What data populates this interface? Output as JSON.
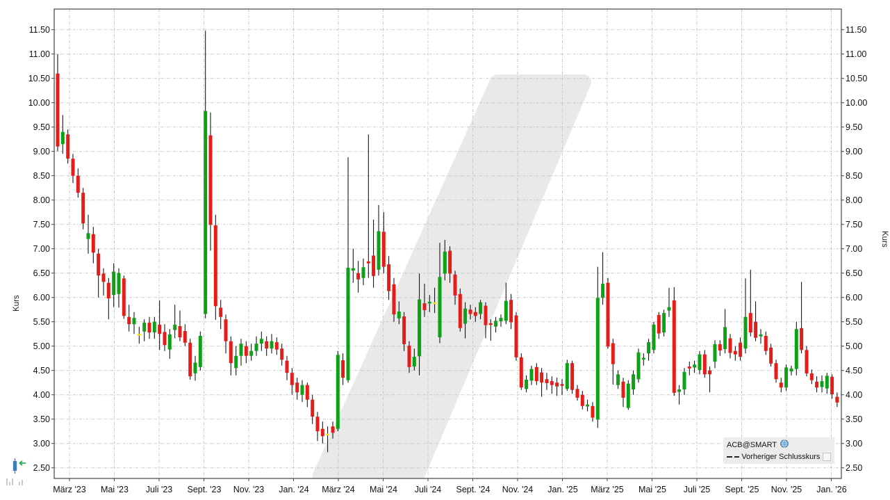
{
  "axes": {
    "y_title_left": "Kurs",
    "y_title_right": "Kurs",
    "y_ticks": [
      "11.50",
      "11.00",
      "10.50",
      "10.00",
      "9.50",
      "9.00",
      "8.50",
      "8.00",
      "7.50",
      "7.00",
      "6.50",
      "6.00",
      "5.50",
      "5.00",
      "4.50",
      "4.00",
      "3.50",
      "3.00",
      "2.50"
    ],
    "x_ticks": [
      "März '23",
      "Mai '23",
      "Juli '23",
      "Sept. '23",
      "Nov. '23",
      "Jan. '24",
      "März '24",
      "Mai '24",
      "Juli '24",
      "Sept. '24",
      "Nov. '24",
      "Jan. '25",
      "März '25",
      "Mai '25",
      "Juli '25",
      "Sept. '25",
      "Nov. '25",
      "Jan. '26"
    ]
  },
  "legend": {
    "series_name": "ACB@SMART",
    "series_icon": "globe-icon",
    "line_label": "Vorheriger Schlusskurs",
    "line_style": "dashed"
  },
  "colors": {
    "up": "#0ea117",
    "down": "#e51d18",
    "doji": "#ffdf00",
    "wick": "#000000",
    "grid": "#c8c8c8",
    "frame": "#444444",
    "watermark": "#e9e9e9",
    "legend_bg": "#ececec",
    "tool_blue": "#3b7dc4",
    "tool_green": "#27ae60",
    "tool_gray": "#cccccc"
  },
  "chart_data": {
    "type": "candlestick",
    "title": "",
    "xlabel": "",
    "ylabel": "Kurs",
    "ylim": [
      2.5,
      11.5
    ],
    "grid": true,
    "legend_position": "bottom-right",
    "x_range": [
      "März '23",
      "Jan. '26"
    ],
    "interval": "weekly",
    "ohlc": [
      [
        10.6,
        11.0,
        9.0,
        9.1
      ],
      [
        9.15,
        9.75,
        8.95,
        9.4
      ],
      [
        9.35,
        9.45,
        8.75,
        8.85
      ],
      [
        8.85,
        8.95,
        8.35,
        8.5
      ],
      [
        8.5,
        8.65,
        8.05,
        8.15
      ],
      [
        8.15,
        8.25,
        7.4,
        7.52
      ],
      [
        7.2,
        7.7,
        6.9,
        7.32
      ],
      [
        7.3,
        7.45,
        6.7,
        6.92
      ],
      [
        6.9,
        7.0,
        6.0,
        6.45
      ],
      [
        6.49,
        6.6,
        6.04,
        6.32
      ],
      [
        6.3,
        6.4,
        5.55,
        5.98
      ],
      [
        6.05,
        6.7,
        5.8,
        6.53
      ],
      [
        6.07,
        6.6,
        5.79,
        6.5
      ],
      [
        6.39,
        6.45,
        5.56,
        5.62
      ],
      [
        5.6,
        5.85,
        5.3,
        5.45
      ],
      [
        5.45,
        5.7,
        5.25,
        5.58
      ],
      [
        5.25,
        5.4,
        5.05,
        5.25
      ],
      [
        5.3,
        5.55,
        5.1,
        5.48
      ],
      [
        5.48,
        5.6,
        5.15,
        5.28
      ],
      [
        5.28,
        5.6,
        5.15,
        5.5
      ],
      [
        5.44,
        5.94,
        4.92,
        5.25
      ],
      [
        5.29,
        5.45,
        4.9,
        5.02
      ],
      [
        4.93,
        5.35,
        4.74,
        5.24
      ],
      [
        5.33,
        5.85,
        5.16,
        5.44
      ],
      [
        5.41,
        5.73,
        5.1,
        5.18
      ],
      [
        5.31,
        5.45,
        5.0,
        5.07
      ],
      [
        5.07,
        5.15,
        4.31,
        4.38
      ],
      [
        4.44,
        4.8,
        4.29,
        4.66
      ],
      [
        4.57,
        5.3,
        4.5,
        5.21
      ],
      [
        5.66,
        11.48,
        5.57,
        9.83
      ],
      [
        9.33,
        9.8,
        6.96,
        7.49
      ],
      [
        7.48,
        7.7,
        5.54,
        5.82
      ],
      [
        5.79,
        5.95,
        5.35,
        5.6
      ],
      [
        5.55,
        5.65,
        4.85,
        5.1
      ],
      [
        5.1,
        5.2,
        4.4,
        4.65
      ],
      [
        4.55,
        5.0,
        4.4,
        4.8
      ],
      [
        4.8,
        5.15,
        4.6,
        5.05
      ],
      [
        5.0,
        5.1,
        4.65,
        4.8
      ],
      [
        4.8,
        5.05,
        4.7,
        4.9
      ],
      [
        4.9,
        5.2,
        4.8,
        5.05
      ],
      [
        5.05,
        5.3,
        4.9,
        5.15
      ],
      [
        5.1,
        5.2,
        4.8,
        4.95
      ],
      [
        4.95,
        5.25,
        4.85,
        5.1
      ],
      [
        5.08,
        5.18,
        4.82,
        4.93
      ],
      [
        4.95,
        5.05,
        4.6,
        4.72
      ],
      [
        4.7,
        4.8,
        4.3,
        4.45
      ],
      [
        4.45,
        4.55,
        4.0,
        4.2
      ],
      [
        4.25,
        4.35,
        3.9,
        4.05
      ],
      [
        4.0,
        4.3,
        3.85,
        4.2
      ],
      [
        4.2,
        4.25,
        3.75,
        3.9
      ],
      [
        3.9,
        4.0,
        3.4,
        3.55
      ],
      [
        3.55,
        3.65,
        3.05,
        3.25
      ],
      [
        3.3,
        3.45,
        3.0,
        3.15
      ],
      [
        3.2,
        3.35,
        2.82,
        3.2
      ],
      [
        3.35,
        3.45,
        3.1,
        3.22
      ],
      [
        3.3,
        4.9,
        3.25,
        4.82
      ],
      [
        4.71,
        4.85,
        4.2,
        4.35
      ],
      [
        4.3,
        8.88,
        4.25,
        6.61
      ],
      [
        6.55,
        7.0,
        6.3,
        6.6
      ],
      [
        6.5,
        6.75,
        6.1,
        6.37
      ],
      [
        6.4,
        6.8,
        6.25,
        6.62
      ],
      [
        6.74,
        9.35,
        6.4,
        6.7
      ],
      [
        6.86,
        7.6,
        6.2,
        6.44
      ],
      [
        6.57,
        7.9,
        6.45,
        7.36
      ],
      [
        7.35,
        7.75,
        6.5,
        6.63
      ],
      [
        6.68,
        6.85,
        5.95,
        6.13
      ],
      [
        6.27,
        6.4,
        5.5,
        5.65
      ],
      [
        5.57,
        5.92,
        5.45,
        5.71
      ],
      [
        5.61,
        5.7,
        4.9,
        5.04
      ],
      [
        5.01,
        5.1,
        4.45,
        4.57
      ],
      [
        4.58,
        4.95,
        4.5,
        4.78
      ],
      [
        4.79,
        6.49,
        4.4,
        5.96
      ],
      [
        5.88,
        6.28,
        5.6,
        5.74
      ],
      [
        5.88,
        6.05,
        5.7,
        5.91
      ],
      [
        5.9,
        6.2,
        5.68,
        5.9
      ],
      [
        5.18,
        7.12,
        5.06,
        6.42
      ],
      [
        6.49,
        7.18,
        6.35,
        6.94
      ],
      [
        6.96,
        7.05,
        6.3,
        6.49
      ],
      [
        6.47,
        6.55,
        5.85,
        6.04
      ],
      [
        6.07,
        6.18,
        5.3,
        5.37
      ],
      [
        5.46,
        5.9,
        5.16,
        5.77
      ],
      [
        5.75,
        5.85,
        5.55,
        5.66
      ],
      [
        5.7,
        5.8,
        5.5,
        5.62
      ],
      [
        5.66,
        5.95,
        5.55,
        5.9
      ],
      [
        5.83,
        5.9,
        5.16,
        5.43
      ],
      [
        5.47,
        5.55,
        5.11,
        5.45
      ],
      [
        5.4,
        5.6,
        5.28,
        5.52
      ],
      [
        5.51,
        5.65,
        5.4,
        5.58
      ],
      [
        5.52,
        6.3,
        5.45,
        5.93
      ],
      [
        5.95,
        6.07,
        5.35,
        5.49
      ],
      [
        5.63,
        5.7,
        4.7,
        4.77
      ],
      [
        4.77,
        4.85,
        4.1,
        4.15
      ],
      [
        4.12,
        4.4,
        4.05,
        4.31
      ],
      [
        4.29,
        4.6,
        4.2,
        4.53
      ],
      [
        4.57,
        4.65,
        4.2,
        4.28
      ],
      [
        4.46,
        4.55,
        3.96,
        4.25
      ],
      [
        4.32,
        4.45,
        4.1,
        4.24
      ],
      [
        4.28,
        4.38,
        4.02,
        4.2
      ],
      [
        4.25,
        4.35,
        3.98,
        4.17
      ],
      [
        4.22,
        4.32,
        4.0,
        4.21
      ],
      [
        4.12,
        4.72,
        4.08,
        4.65
      ],
      [
        4.65,
        4.7,
        4.02,
        4.1
      ],
      [
        4.12,
        4.2,
        3.88,
        3.94
      ],
      [
        4.0,
        4.08,
        3.7,
        3.77
      ],
      [
        3.76,
        3.9,
        3.66,
        3.8
      ],
      [
        3.77,
        3.85,
        3.45,
        3.53
      ],
      [
        3.49,
        6.63,
        3.32,
        5.99
      ],
      [
        5.99,
        6.93,
        5.85,
        6.28
      ],
      [
        6.3,
        6.4,
        4.95,
        4.99
      ],
      [
        5.06,
        5.15,
        4.21,
        4.63
      ],
      [
        4.2,
        4.5,
        4.12,
        4.42
      ],
      [
        4.27,
        4.35,
        3.75,
        3.94
      ],
      [
        3.73,
        4.3,
        3.69,
        4.23
      ],
      [
        4.11,
        4.5,
        4.0,
        4.42
      ],
      [
        4.32,
        4.95,
        4.25,
        4.87
      ],
      [
        4.74,
        4.85,
        4.6,
        4.76
      ],
      [
        4.85,
        5.15,
        4.7,
        5.08
      ],
      [
        4.92,
        5.5,
        4.85,
        5.44
      ],
      [
        5.64,
        5.7,
        5.15,
        5.26
      ],
      [
        5.28,
        5.75,
        5.2,
        5.68
      ],
      [
        5.73,
        6.2,
        5.6,
        5.8
      ],
      [
        5.94,
        6.21,
        3.98,
        4.04
      ],
      [
        4.06,
        4.2,
        3.8,
        4.11
      ],
      [
        4.11,
        4.55,
        4.0,
        4.47
      ],
      [
        4.58,
        4.68,
        4.4,
        4.54
      ],
      [
        4.56,
        4.7,
        4.45,
        4.62
      ],
      [
        4.51,
        4.9,
        4.42,
        4.83
      ],
      [
        4.83,
        4.92,
        4.35,
        4.42
      ],
      [
        4.5,
        4.58,
        4.05,
        4.42
      ],
      [
        4.68,
        5.12,
        4.55,
        5.04
      ],
      [
        5.04,
        5.12,
        4.8,
        4.91
      ],
      [
        4.94,
        5.76,
        4.85,
        5.39
      ],
      [
        5.16,
        5.25,
        4.75,
        4.86
      ],
      [
        4.9,
        5.0,
        4.7,
        4.83
      ],
      [
        5.07,
        5.18,
        4.7,
        4.78
      ],
      [
        4.95,
        6.39,
        4.85,
        5.6
      ],
      [
        5.68,
        6.57,
        5.2,
        5.28
      ],
      [
        5.5,
        5.92,
        5.1,
        5.17
      ],
      [
        5.2,
        5.35,
        5.05,
        5.24
      ],
      [
        5.21,
        5.3,
        4.82,
        4.9
      ],
      [
        4.97,
        5.05,
        4.58,
        4.64
      ],
      [
        4.65,
        4.72,
        4.25,
        4.32
      ],
      [
        4.25,
        4.35,
        4.05,
        4.15
      ],
      [
        4.15,
        4.62,
        4.08,
        4.56
      ],
      [
        4.48,
        4.6,
        4.4,
        4.54
      ],
      [
        4.53,
        5.5,
        4.4,
        5.35
      ],
      [
        5.37,
        6.32,
        4.85,
        4.92
      ],
      [
        4.92,
        5.0,
        4.38,
        4.44
      ],
      [
        4.44,
        4.52,
        4.22,
        4.3
      ],
      [
        4.27,
        4.38,
        4.05,
        4.15
      ],
      [
        4.16,
        4.4,
        4.05,
        4.28
      ],
      [
        4.13,
        4.45,
        4.02,
        4.39
      ],
      [
        4.37,
        4.42,
        3.92,
        4.01
      ],
      [
        3.96,
        4.05,
        3.75,
        3.84
      ]
    ]
  }
}
